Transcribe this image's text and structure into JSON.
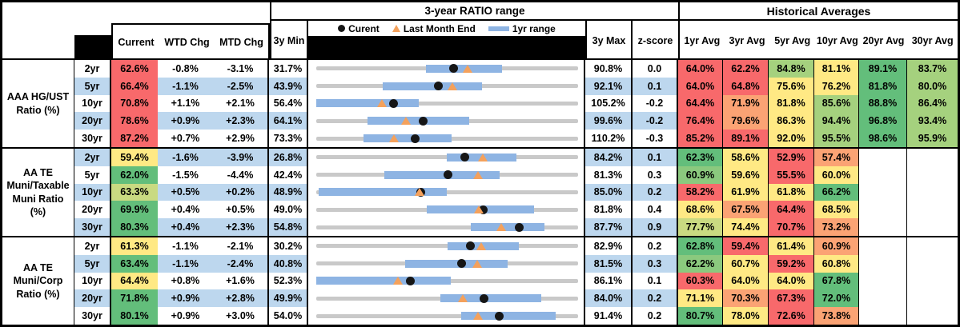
{
  "palette": {
    "red": "#F8696B",
    "orange": "#FBA374",
    "yellow": "#FFE984",
    "ygreen": "#C9DA81",
    "mgreen": "#8BC97E",
    "lgreen": "#A5D17E",
    "green": "#63BE7B",
    "band": "#BDD7EE",
    "bar": "#8EB4E3",
    "track": "#C9C9C9",
    "dot": "#161616",
    "tri": "#F4A15C"
  },
  "header": {
    "range_title": "3-year RATIO range",
    "hist_title": "Historical Averages",
    "current": "Current",
    "wtd": "WTD Chg",
    "mtd": "MTD Chg",
    "min": "3y Min",
    "max": "3y Max",
    "z": "z-score",
    "avg_cols": [
      "1yr Avg",
      "3yr Avg",
      "5yr Avg",
      "10yr Avg",
      "20yr Avg",
      "30yr Avg"
    ],
    "legend": {
      "current": "Curent",
      "last_month": "Last Month End",
      "range": "1yr range"
    }
  },
  "chart_data": {
    "type": "table",
    "title": "3-year RATIO range and Historical Averages",
    "note": "range charts scaled per row from 3y Min to 3y Max; bar = 1yr range, dot = current, triangle = last month end (positions in % of track)",
    "groups": [
      {
        "label": "AAA HG/UST Ratio (%)",
        "rows": [
          {
            "tenor": "2yr",
            "band": false,
            "current": {
              "v": "62.6%",
              "c": "red"
            },
            "wtd": "-0.8%",
            "mtd": "-3.1%",
            "min": "31.7%",
            "max": "90.8%",
            "z": "0.0",
            "range": {
              "bar": [
                42.0,
                71.0
              ],
              "dot": 52.3,
              "tri": 57.7
            },
            "avgs": [
              [
                "64.0%",
                "red"
              ],
              [
                "62.2%",
                "red"
              ],
              [
                "84.8%",
                "lgreen"
              ],
              [
                "81.1%",
                "yellow"
              ],
              [
                "89.1%",
                "green"
              ],
              [
                "83.7%",
                "lgreen"
              ]
            ]
          },
          {
            "tenor": "5yr",
            "band": true,
            "current": {
              "v": "66.4%",
              "c": "red"
            },
            "wtd": "-1.1%",
            "mtd": "-2.5%",
            "min": "43.9%",
            "max": "92.1%",
            "z": "0.1",
            "range": {
              "bar": [
                25.5,
                63.3
              ],
              "dot": 46.6,
              "tri": 51.9
            },
            "avgs": [
              [
                "64.0%",
                "red"
              ],
              [
                "64.8%",
                "red"
              ],
              [
                "75.6%",
                "yellow"
              ],
              [
                "76.2%",
                "yellow"
              ],
              [
                "81.8%",
                "green"
              ],
              [
                "80.0%",
                "lgreen"
              ]
            ]
          },
          {
            "tenor": "10yr",
            "band": false,
            "current": {
              "v": "70.8%",
              "c": "red"
            },
            "wtd": "+1.1%",
            "mtd": "+2.1%",
            "min": "56.4%",
            "max": "105.2%",
            "z": "-0.2",
            "range": {
              "bar": [
                0.0,
                39.2
              ],
              "dot": 29.5,
              "tri": 25.2
            },
            "avgs": [
              [
                "64.4%",
                "red"
              ],
              [
                "71.9%",
                "orange"
              ],
              [
                "81.8%",
                "yellow"
              ],
              [
                "85.6%",
                "lgreen"
              ],
              [
                "88.8%",
                "green"
              ],
              [
                "86.4%",
                "lgreen"
              ]
            ]
          },
          {
            "tenor": "20yr",
            "band": true,
            "current": {
              "v": "78.6%",
              "c": "red"
            },
            "wtd": "+0.9%",
            "mtd": "+2.3%",
            "min": "64.1%",
            "max": "99.6%",
            "z": "-0.2",
            "range": {
              "bar": [
                19.6,
                58.3
              ],
              "dot": 40.8,
              "tri": 34.4
            },
            "avgs": [
              [
                "76.4%",
                "red"
              ],
              [
                "79.6%",
                "orange"
              ],
              [
                "86.3%",
                "yellow"
              ],
              [
                "94.4%",
                "lgreen"
              ],
              [
                "96.8%",
                "green"
              ],
              [
                "93.4%",
                "lgreen"
              ]
            ]
          },
          {
            "tenor": "30yr",
            "band": false,
            "current": {
              "v": "87.2%",
              "c": "red"
            },
            "wtd": "+0.7%",
            "mtd": "+2.9%",
            "min": "73.3%",
            "max": "110.2%",
            "z": "-0.3",
            "range": {
              "bar": [
                17.9,
                51.8
              ],
              "dot": 37.7,
              "tri": 29.8
            },
            "avgs": [
              [
                "85.2%",
                "red"
              ],
              [
                "89.1%",
                "red"
              ],
              [
                "92.0%",
                "yellow"
              ],
              [
                "95.5%",
                "lgreen"
              ],
              [
                "98.6%",
                "green"
              ],
              [
                "95.9%",
                "lgreen"
              ]
            ]
          }
        ]
      },
      {
        "label": "AA TE Muni/Taxable Muni Ratio (%)",
        "rows": [
          {
            "tenor": "2yr",
            "band": true,
            "current": {
              "v": "59.4%",
              "c": "yellow"
            },
            "wtd": "-1.6%",
            "mtd": "-3.9%",
            "min": "26.8%",
            "max": "84.2%",
            "z": "0.1",
            "range": {
              "bar": [
                49.9,
                76.6
              ],
              "dot": 56.8,
              "tri": 63.6
            },
            "avgs": [
              [
                "62.3%",
                "green"
              ],
              [
                "58.6%",
                "yellow"
              ],
              [
                "52.9%",
                "red"
              ],
              [
                "57.4%",
                "orange"
              ],
              [
                "",
                ""
              ],
              [
                "",
                ""
              ]
            ]
          },
          {
            "tenor": "5yr",
            "band": false,
            "current": {
              "v": "62.0%",
              "c": "green"
            },
            "wtd": "-1.5%",
            "mtd": "-4.4%",
            "min": "42.4%",
            "max": "81.3%",
            "z": "0.3",
            "range": {
              "bar": [
                26.0,
                69.9
              ],
              "dot": 50.4,
              "tri": 61.7
            },
            "avgs": [
              [
                "60.9%",
                "mgreen"
              ],
              [
                "59.6%",
                "yellow"
              ],
              [
                "55.5%",
                "red"
              ],
              [
                "60.0%",
                "yellow"
              ],
              [
                "",
                ""
              ],
              [
                "",
                ""
              ]
            ]
          },
          {
            "tenor": "10yr",
            "band": true,
            "current": {
              "v": "63.3%",
              "c": "ygreen"
            },
            "wtd": "+0.5%",
            "mtd": "+0.2%",
            "min": "48.9%",
            "max": "85.0%",
            "z": "0.2",
            "range": {
              "bar": [
                1.0,
                49.7
              ],
              "dot": 39.9,
              "tri": 39.3
            },
            "avgs": [
              [
                "58.2%",
                "red"
              ],
              [
                "61.9%",
                "yellow"
              ],
              [
                "61.8%",
                "yellow"
              ],
              [
                "66.2%",
                "green"
              ],
              [
                "",
                ""
              ],
              [
                "",
                ""
              ]
            ]
          },
          {
            "tenor": "20yr",
            "band": false,
            "current": {
              "v": "69.9%",
              "c": "green"
            },
            "wtd": "+0.4%",
            "mtd": "+0.5%",
            "min": "49.0%",
            "max": "81.8%",
            "z": "0.4",
            "range": {
              "bar": [
                42.3,
                83.2
              ],
              "dot": 63.7,
              "tri": 62.2
            },
            "avgs": [
              [
                "68.6%",
                "yellow"
              ],
              [
                "67.5%",
                "orange"
              ],
              [
                "64.4%",
                "red"
              ],
              [
                "68.5%",
                "yellow"
              ],
              [
                "",
                ""
              ],
              [
                "",
                ""
              ]
            ]
          },
          {
            "tenor": "30yr",
            "band": true,
            "current": {
              "v": "80.3%",
              "c": "green"
            },
            "wtd": "+0.4%",
            "mtd": "+2.3%",
            "min": "54.8%",
            "max": "87.7%",
            "z": "0.9",
            "range": {
              "bar": [
                59.0,
                87.1
              ],
              "dot": 77.5,
              "tri": 70.5
            },
            "avgs": [
              [
                "77.7%",
                "ygreen"
              ],
              [
                "74.4%",
                "yellow"
              ],
              [
                "70.7%",
                "red"
              ],
              [
                "73.2%",
                "orange"
              ],
              [
                "",
                ""
              ],
              [
                "",
                ""
              ]
            ]
          }
        ]
      },
      {
        "label": "AA TE Muni/Corp Ratio (%)",
        "rows": [
          {
            "tenor": "2yr",
            "band": false,
            "current": {
              "v": "61.3%",
              "c": "yellow"
            },
            "wtd": "-1.1%",
            "mtd": "-2.1%",
            "min": "30.2%",
            "max": "82.9%",
            "z": "0.2",
            "range": {
              "bar": [
                50.2,
                77.3
              ],
              "dot": 59.0,
              "tri": 63.0
            },
            "avgs": [
              [
                "62.8%",
                "green"
              ],
              [
                "59.4%",
                "red"
              ],
              [
                "61.4%",
                "yellow"
              ],
              [
                "60.9%",
                "orange"
              ],
              [
                "",
                ""
              ],
              [
                "",
                ""
              ]
            ]
          },
          {
            "tenor": "5yr",
            "band": true,
            "current": {
              "v": "63.4%",
              "c": "green"
            },
            "wtd": "-1.1%",
            "mtd": "-2.4%",
            "min": "40.8%",
            "max": "81.5%",
            "z": "0.3",
            "range": {
              "bar": [
                34.0,
                73.1
              ],
              "dot": 55.5,
              "tri": 61.4
            },
            "avgs": [
              [
                "62.2%",
                "mgreen"
              ],
              [
                "60.7%",
                "yellow"
              ],
              [
                "59.2%",
                "red"
              ],
              [
                "60.8%",
                "yellow"
              ],
              [
                "",
                ""
              ],
              [
                "",
                ""
              ]
            ]
          },
          {
            "tenor": "10yr",
            "band": false,
            "current": {
              "v": "64.4%",
              "c": "yellow"
            },
            "wtd": "+0.8%",
            "mtd": "+1.6%",
            "min": "52.3%",
            "max": "86.1%",
            "z": "0.1",
            "range": {
              "bar": [
                0.0,
                51.3
              ],
              "dot": 35.8,
              "tri": 31.1
            },
            "avgs": [
              [
                "60.3%",
                "red"
              ],
              [
                "64.0%",
                "yellow"
              ],
              [
                "64.0%",
                "yellow"
              ],
              [
                "67.8%",
                "green"
              ],
              [
                "",
                ""
              ],
              [
                "",
                ""
              ]
            ]
          },
          {
            "tenor": "20yr",
            "band": true,
            "current": {
              "v": "71.8%",
              "c": "green"
            },
            "wtd": "+0.9%",
            "mtd": "+2.8%",
            "min": "49.9%",
            "max": "84.0%",
            "z": "0.2",
            "range": {
              "bar": [
                47.5,
                86.0
              ],
              "dot": 64.2,
              "tri": 56.0
            },
            "avgs": [
              [
                "71.1%",
                "yellow"
              ],
              [
                "70.3%",
                "orange"
              ],
              [
                "67.3%",
                "red"
              ],
              [
                "72.0%",
                "green"
              ],
              [
                "",
                ""
              ],
              [
                "",
                ""
              ]
            ]
          },
          {
            "tenor": "30yr",
            "band": false,
            "current": {
              "v": "80.1%",
              "c": "green"
            },
            "wtd": "+0.9%",
            "mtd": "+3.0%",
            "min": "54.0%",
            "max": "91.4%",
            "z": "0.2",
            "range": {
              "bar": [
                55.3,
                91.5
              ],
              "dot": 69.8,
              "tri": 61.8
            },
            "avgs": [
              [
                "80.7%",
                "green"
              ],
              [
                "78.0%",
                "yellow"
              ],
              [
                "72.6%",
                "red"
              ],
              [
                "73.8%",
                "orange"
              ],
              [
                "",
                ""
              ],
              [
                "",
                ""
              ]
            ]
          }
        ]
      }
    ]
  }
}
